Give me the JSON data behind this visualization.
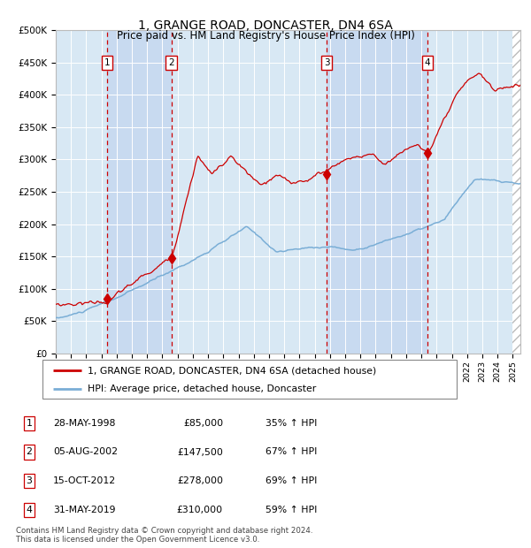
{
  "title": "1, GRANGE ROAD, DONCASTER, DN4 6SA",
  "subtitle": "Price paid vs. HM Land Registry's House Price Index (HPI)",
  "ylabel_ticks": [
    "£0",
    "£50K",
    "£100K",
    "£150K",
    "£200K",
    "£250K",
    "£300K",
    "£350K",
    "£400K",
    "£450K",
    "£500K"
  ],
  "ytick_values": [
    0,
    50000,
    100000,
    150000,
    200000,
    250000,
    300000,
    350000,
    400000,
    450000,
    500000
  ],
  "ylim": [
    0,
    500000
  ],
  "xlim_start": 1995.0,
  "xlim_end": 2025.5,
  "background_color": "#ffffff",
  "plot_bg_color": "#dce9f5",
  "grid_color": "#ffffff",
  "red_line_color": "#cc0000",
  "blue_line_color": "#7aaed6",
  "dashed_line_color": "#cc0000",
  "sale_points": [
    {
      "num": 1,
      "year": 1998.38,
      "price": 85000,
      "date": "28-MAY-1998",
      "pct": "35%"
    },
    {
      "num": 2,
      "year": 2002.59,
      "price": 147500,
      "date": "05-AUG-2002",
      "pct": "67%"
    },
    {
      "num": 3,
      "year": 2012.79,
      "price": 278000,
      "date": "15-OCT-2012",
      "pct": "69%"
    },
    {
      "num": 4,
      "year": 2019.41,
      "price": 310000,
      "date": "31-MAY-2019",
      "pct": "59%"
    }
  ],
  "legend_label_red": "1, GRANGE ROAD, DONCASTER, DN4 6SA (detached house)",
  "legend_label_blue": "HPI: Average price, detached house, Doncaster",
  "footnote": "Contains HM Land Registry data © Crown copyright and database right 2024.\nThis data is licensed under the Open Government Licence v3.0.",
  "table_rows": [
    {
      "num": 1,
      "date": "28-MAY-1998",
      "price": "£85,000",
      "pct": "35% ↑ HPI"
    },
    {
      "num": 2,
      "date": "05-AUG-2002",
      "price": "£147,500",
      "pct": "67% ↑ HPI"
    },
    {
      "num": 3,
      "date": "15-OCT-2012",
      "price": "£278,000",
      "pct": "69% ↑ HPI"
    },
    {
      "num": 4,
      "date": "31-MAY-2019",
      "price": "£310,000",
      "pct": "59% ↑ HPI"
    }
  ]
}
